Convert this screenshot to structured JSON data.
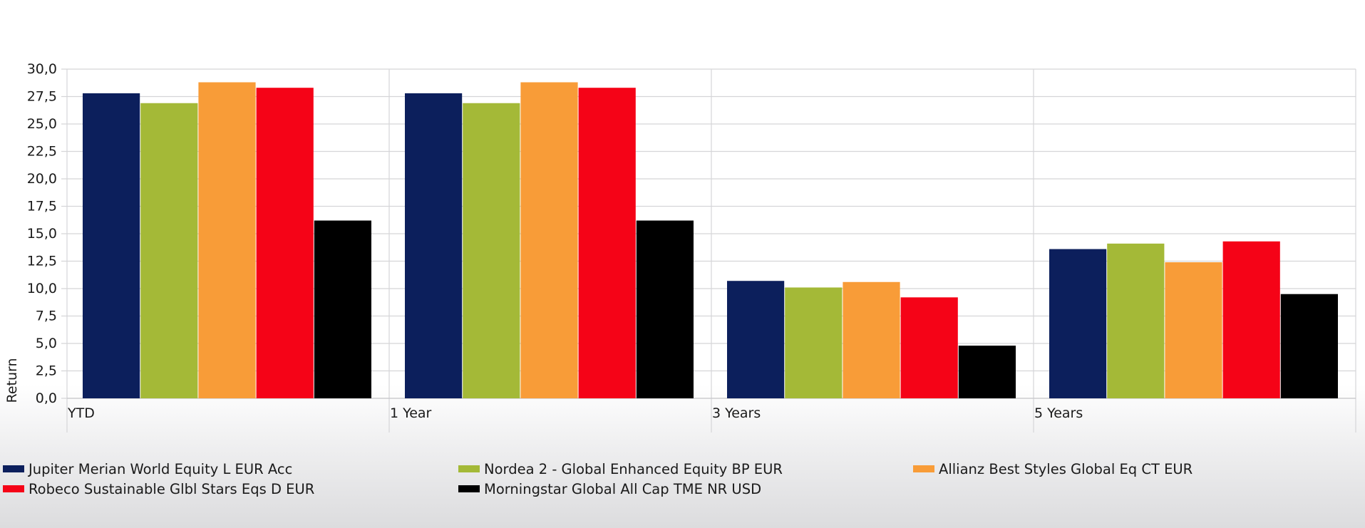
{
  "chart_data": {
    "type": "bar",
    "title": "",
    "xlabel": "",
    "ylabel": "Return",
    "ylim": [
      0,
      30
    ],
    "yticks": [
      "0,0",
      "2,5",
      "5,0",
      "7,5",
      "10,0",
      "12,5",
      "15,0",
      "17,5",
      "20,0",
      "22,5",
      "25,0",
      "27,5",
      "30,0"
    ],
    "grid": true,
    "legend_position": "bottom",
    "categories": [
      "YTD",
      "1 Year",
      "3 Years",
      "5 Years"
    ],
    "series": [
      {
        "name": "Jupiter Merian World Equity L EUR Acc",
        "color": "#0c1f5c",
        "values": [
          27.8,
          27.8,
          10.7,
          13.6
        ]
      },
      {
        "name": "Nordea 2 - Global Enhanced Equity BP EUR",
        "color": "#a4b937",
        "values": [
          26.9,
          26.9,
          10.1,
          14.1
        ]
      },
      {
        "name": "Allianz Best Styles Global Eq CT EUR",
        "color": "#f89c38",
        "values": [
          28.8,
          28.8,
          10.6,
          12.4
        ]
      },
      {
        "name": "Robeco Sustainable Glbl Stars Eqs D EUR",
        "color": "#f50317",
        "values": [
          28.3,
          28.3,
          9.2,
          14.3
        ]
      },
      {
        "name": "Morningstar Global All Cap TME NR USD",
        "color": "#000000",
        "values": [
          16.2,
          16.2,
          4.8,
          9.5
        ]
      }
    ]
  }
}
